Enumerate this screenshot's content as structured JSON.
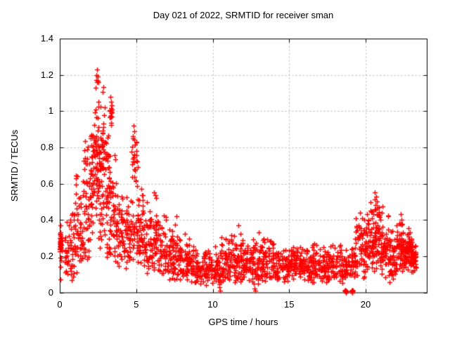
{
  "colors": {
    "marker": "#ff0000",
    "grid": "#b4b4b4",
    "border": "#000000",
    "text": "#000000",
    "background": "#ffffff"
  },
  "chart_data": {
    "type": "scatter",
    "title": "Day 021 of 2022, SRMTID for receiver sman",
    "xlabel": "GPS time / hours",
    "ylabel": "SRMTID / TECUs",
    "xlim": [
      0,
      24
    ],
    "ylim": [
      0,
      1.4
    ],
    "x_ticks": [
      0,
      5,
      10,
      15,
      20
    ],
    "x_tick_labels": [
      "0",
      "5",
      "10",
      "15",
      "20"
    ],
    "y_ticks": [
      0,
      0.2,
      0.4,
      0.6,
      0.8,
      1.0,
      1.2,
      1.4
    ],
    "y_tick_labels": [
      "0",
      "0.2",
      "0.4",
      "0.6",
      "0.8",
      "1",
      "1.2",
      "1.4"
    ],
    "grid": true,
    "grid_style": "dashed",
    "tick_style": "inward-mirrored",
    "marker": "plus",
    "marker_size_px": 7,
    "series_name": "SRMTID",
    "envelope_bins_format": "[x_start_hour, x_end_hour, n_points, y_min, y_max, low_bias]",
    "envelope_bins": [
      [
        0.0,
        0.1,
        16,
        0.22,
        0.34,
        1.0
      ],
      [
        0.0,
        0.12,
        14,
        0.07,
        0.37,
        1.0
      ],
      [
        0.3,
        0.6,
        22,
        0.05,
        0.42,
        1.3
      ],
      [
        0.6,
        1.0,
        34,
        0.04,
        0.58,
        1.3
      ],
      [
        1.0,
        1.5,
        45,
        0.1,
        0.7,
        1.25
      ],
      [
        1.5,
        2.0,
        55,
        0.15,
        0.88,
        1.2
      ],
      [
        2.0,
        2.3,
        45,
        0.2,
        1.1,
        1.0
      ],
      [
        2.3,
        2.6,
        55,
        0.25,
        1.23,
        0.95
      ],
      [
        2.6,
        3.0,
        60,
        0.2,
        1.18,
        1.1
      ],
      [
        3.0,
        3.3,
        45,
        0.15,
        0.95,
        1.15
      ],
      [
        3.25,
        3.45,
        14,
        0.9,
        1.09,
        1.0
      ],
      [
        3.3,
        3.7,
        40,
        0.15,
        0.8,
        1.2
      ],
      [
        3.7,
        4.2,
        45,
        0.12,
        0.68,
        1.25
      ],
      [
        4.2,
        4.6,
        40,
        0.12,
        0.62,
        1.25
      ],
      [
        4.6,
        5.1,
        30,
        0.15,
        0.55,
        1.2
      ],
      [
        4.7,
        5.1,
        28,
        0.55,
        0.92,
        1.0
      ],
      [
        5.1,
        5.5,
        40,
        0.12,
        0.68,
        1.3
      ],
      [
        5.5,
        6.0,
        45,
        0.1,
        0.52,
        1.3
      ],
      [
        6.0,
        6.5,
        45,
        0.08,
        0.56,
        1.35
      ],
      [
        6.5,
        7.0,
        42,
        0.08,
        0.45,
        1.35
      ],
      [
        7.0,
        7.5,
        42,
        0.06,
        0.38,
        1.3
      ],
      [
        7.5,
        8.0,
        42,
        0.05,
        0.42,
        1.35
      ],
      [
        8.0,
        8.5,
        42,
        0.06,
        0.36,
        1.3
      ],
      [
        8.5,
        9.0,
        40,
        0.05,
        0.3,
        1.3
      ],
      [
        9.0,
        10.0,
        75,
        0.04,
        0.26,
        1.25
      ],
      [
        10.0,
        10.5,
        40,
        0.03,
        0.28,
        1.25
      ],
      [
        10.5,
        11.2,
        60,
        0.05,
        0.35,
        1.3
      ],
      [
        11.2,
        12.0,
        65,
        0.05,
        0.37,
        1.35
      ],
      [
        12.0,
        12.6,
        45,
        0.05,
        0.3,
        1.25
      ],
      [
        12.6,
        13.1,
        40,
        0.04,
        0.33,
        1.3
      ],
      [
        13.1,
        14.0,
        75,
        0.05,
        0.31,
        1.25
      ],
      [
        14.0,
        15.0,
        80,
        0.05,
        0.27,
        1.2
      ],
      [
        15.0,
        15.8,
        65,
        0.07,
        0.3,
        1.2
      ],
      [
        15.8,
        16.5,
        58,
        0.05,
        0.27,
        1.2
      ],
      [
        16.5,
        17.5,
        80,
        0.05,
        0.28,
        1.2
      ],
      [
        17.5,
        18.5,
        78,
        0.04,
        0.28,
        1.25
      ],
      [
        18.5,
        19.3,
        60,
        0.07,
        0.26,
        1.2
      ],
      [
        19.3,
        20.0,
        60,
        0.06,
        0.46,
        1.3
      ],
      [
        20.0,
        20.5,
        55,
        0.1,
        0.5,
        1.2
      ],
      [
        20.5,
        21.0,
        60,
        0.1,
        0.55,
        1.2
      ],
      [
        21.0,
        21.5,
        55,
        0.08,
        0.5,
        1.25
      ],
      [
        21.5,
        22.0,
        50,
        0.05,
        0.36,
        1.25
      ],
      [
        22.0,
        22.5,
        55,
        0.1,
        0.43,
        1.15
      ],
      [
        22.5,
        23.0,
        65,
        0.1,
        0.38,
        1.1
      ],
      [
        23.0,
        23.3,
        45,
        0.1,
        0.3,
        1.0
      ]
    ],
    "extra_points": [
      [
        0.03,
        0.37
      ],
      [
        0.05,
        0.07
      ],
      [
        0.02,
        0.3
      ],
      [
        0.04,
        0.28
      ],
      [
        0.03,
        0.26
      ],
      [
        0.05,
        0.32
      ],
      [
        0.02,
        0.24
      ],
      [
        0.06,
        0.29
      ],
      [
        0.03,
        0.31
      ],
      [
        0.05,
        0.27
      ],
      [
        0.04,
        0.33
      ],
      [
        0.02,
        0.28
      ],
      [
        0.06,
        0.26
      ],
      [
        0.04,
        0.3
      ],
      [
        0.03,
        0.29
      ],
      [
        0.05,
        0.25
      ],
      [
        0.02,
        0.27
      ],
      [
        0.04,
        0.31
      ],
      [
        2.42,
        1.23
      ],
      [
        2.38,
        1.2
      ],
      [
        2.46,
        1.19
      ],
      [
        2.52,
        1.16
      ],
      [
        2.35,
        1.13
      ],
      [
        3.3,
        1.08
      ],
      [
        3.34,
        1.05
      ],
      [
        3.28,
        1.0
      ],
      [
        3.36,
        0.97
      ],
      [
        4.84,
        0.92
      ],
      [
        4.88,
        0.89
      ],
      [
        4.8,
        0.86
      ],
      [
        6.15,
        0.55
      ],
      [
        6.3,
        0.52
      ],
      [
        7.62,
        0.42
      ],
      [
        9.55,
        0.04
      ],
      [
        10.42,
        0.03
      ],
      [
        10.47,
        0.01
      ],
      [
        11.68,
        0.37
      ],
      [
        12.68,
        0.05
      ],
      [
        12.72,
        0.02
      ],
      [
        12.76,
        0.01
      ],
      [
        13.0,
        0.33
      ],
      [
        18.64,
        0.01
      ],
      [
        18.66,
        0.005
      ],
      [
        18.68,
        0.015
      ],
      [
        18.7,
        0.005
      ],
      [
        18.72,
        0.01
      ],
      [
        18.74,
        0.005
      ],
      [
        18.69,
        0.0
      ],
      [
        19.08,
        0.01
      ],
      [
        19.1,
        0.005
      ],
      [
        19.12,
        0.015
      ],
      [
        19.14,
        0.005
      ],
      [
        19.16,
        0.01
      ],
      [
        19.13,
        0.0
      ],
      [
        19.62,
        0.44
      ],
      [
        20.62,
        0.55
      ],
      [
        20.68,
        0.53
      ],
      [
        20.72,
        0.5
      ],
      [
        22.28,
        0.43
      ],
      [
        22.35,
        0.4
      ]
    ]
  }
}
